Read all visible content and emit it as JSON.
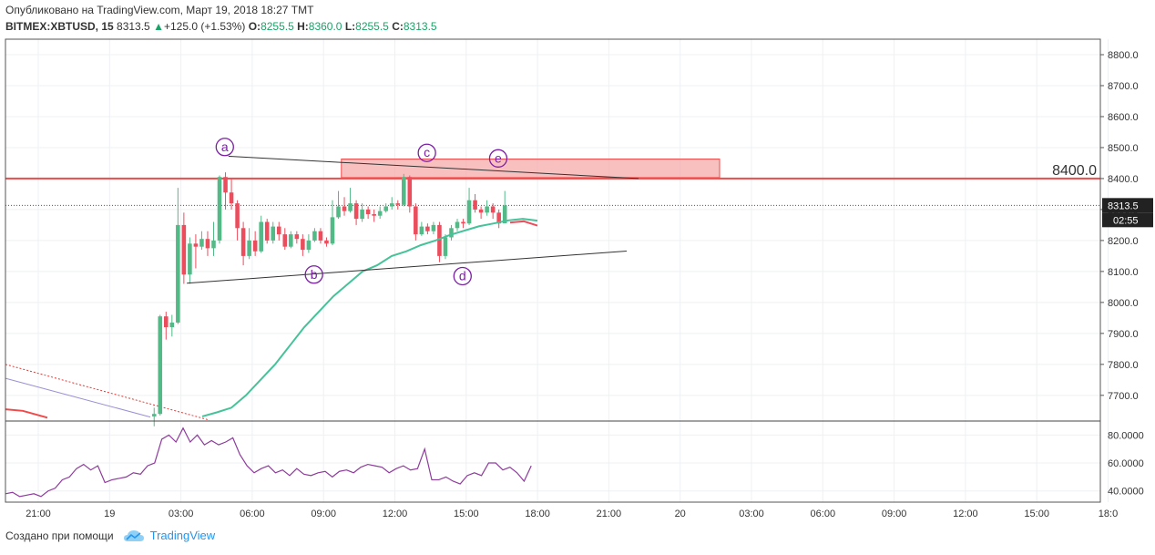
{
  "header": {
    "published": "Опубликовано на TradingView.com, Март 19, 2018 18:27 TMT",
    "symbol": "BITMEX:XBTUSD, 15",
    "last": "8313.5",
    "change_arrow": "▲",
    "change": "+125.0 (+1.53%)",
    "o_label": "O:",
    "o_value": "8255.5",
    "h_label": "H:",
    "h_value": "8360.0",
    "l_label": "L:",
    "l_value": "8255.5",
    "c_label": "C:",
    "c_value": "8313.5"
  },
  "footer": {
    "created_with": "Создано при помощи",
    "brand": "TradingView",
    "logo_icon": "tradingview-cloud-icon"
  },
  "colors": {
    "up": "#53b987",
    "down": "#eb4d5c",
    "ema": "#46c29a",
    "rsi": "#8e3b9c",
    "resistance": "#f04a4a",
    "zone_fill": "#f7a5a5",
    "label": "#7b1fa2"
  },
  "chart_data": {
    "type": "candlestick",
    "price_axis": {
      "ticks": [
        "8800.0",
        "8700.0",
        "8600.0",
        "8500.0",
        "8400.0",
        "8300.0",
        "8200.0",
        "8100.0",
        "8000.0",
        "7900.0",
        "7800.0",
        "7700.0"
      ],
      "range": [
        7620,
        8850
      ]
    },
    "time_axis": {
      "ticks": [
        "21:00",
        "19",
        "03:00",
        "06:00",
        "09:00",
        "12:00",
        "15:00",
        "18:00",
        "21:00",
        "20",
        "03:00",
        "06:00",
        "09:00",
        "12:00",
        "15:00",
        "18:0"
      ]
    },
    "last_price_label": "8313.5",
    "countdown_label": "02:55",
    "resistance": {
      "price": 8400,
      "label": "8400.0"
    },
    "zone": {
      "top": 8463,
      "bottom": 8403,
      "start": "09:45",
      "end": "01:45"
    },
    "wave_labels": [
      {
        "text": "a",
        "time": "05:00",
        "price": 8502
      },
      {
        "text": "b",
        "time": "08:45",
        "price": 8090
      },
      {
        "text": "c",
        "time": "13:30",
        "price": 8483
      },
      {
        "text": "d",
        "time": "15:00",
        "price": 8085
      },
      {
        "text": "e",
        "time": "16:30",
        "price": 8465
      }
    ],
    "trendlines": [
      {
        "from": [
          "05:00",
          8472
        ],
        "to": [
          "22:15",
          8400
        ]
      },
      {
        "from": [
          "03:15",
          8062
        ],
        "to": [
          "21:45",
          8166
        ]
      }
    ],
    "candles": [
      [
        7632,
        7640,
        7600,
        7660
      ],
      [
        7640,
        7955,
        7635,
        7960
      ],
      [
        7955,
        7920,
        7880,
        7970
      ],
      [
        7920,
        7935,
        7890,
        7960
      ],
      [
        7935,
        8250,
        7930,
        8370
      ],
      [
        8250,
        8090,
        8060,
        8290
      ],
      [
        8090,
        8190,
        8060,
        8210
      ],
      [
        8190,
        8180,
        8110,
        8220
      ],
      [
        8180,
        8205,
        8170,
        8230
      ],
      [
        8205,
        8175,
        8150,
        8230
      ],
      [
        8175,
        8200,
        8150,
        8260
      ],
      [
        8200,
        8405,
        8190,
        8410
      ],
      [
        8405,
        8355,
        8300,
        8420
      ],
      [
        8355,
        8320,
        8300,
        8400
      ],
      [
        8320,
        8240,
        8200,
        8330
      ],
      [
        8240,
        8150,
        8120,
        8260
      ],
      [
        8150,
        8200,
        8140,
        8240
      ],
      [
        8200,
        8165,
        8150,
        8230
      ],
      [
        8165,
        8260,
        8160,
        8280
      ],
      [
        8260,
        8200,
        8190,
        8270
      ],
      [
        8200,
        8245,
        8190,
        8260
      ],
      [
        8245,
        8220,
        8200,
        8260
      ],
      [
        8220,
        8180,
        8170,
        8240
      ],
      [
        8180,
        8220,
        8175,
        8230
      ],
      [
        8220,
        8205,
        8190,
        8230
      ],
      [
        8205,
        8170,
        8150,
        8220
      ],
      [
        8170,
        8200,
        8160,
        8220
      ],
      [
        8200,
        8230,
        8195,
        8240
      ],
      [
        8230,
        8200,
        8190,
        8240
      ],
      [
        8200,
        8190,
        8180,
        8210
      ],
      [
        8190,
        8275,
        8185,
        8330
      ],
      [
        8275,
        8310,
        8270,
        8360
      ],
      [
        8310,
        8295,
        8280,
        8340
      ],
      [
        8295,
        8320,
        8290,
        8370
      ],
      [
        8320,
        8270,
        8250,
        8330
      ],
      [
        8270,
        8300,
        8260,
        8320
      ],
      [
        8300,
        8285,
        8270,
        8310
      ],
      [
        8285,
        8280,
        8260,
        8300
      ],
      [
        8280,
        8295,
        8270,
        8310
      ],
      [
        8295,
        8310,
        8290,
        8320
      ],
      [
        8310,
        8320,
        8300,
        8340
      ],
      [
        8320,
        8315,
        8300,
        8330
      ],
      [
        8315,
        8405,
        8310,
        8415
      ],
      [
        8405,
        8310,
        8290,
        8410
      ],
      [
        8310,
        8220,
        8200,
        8320
      ],
      [
        8220,
        8245,
        8215,
        8260
      ],
      [
        8245,
        8230,
        8220,
        8255
      ],
      [
        8230,
        8250,
        8220,
        8260
      ],
      [
        8250,
        8150,
        8130,
        8260
      ],
      [
        8150,
        8210,
        8140,
        8220
      ],
      [
        8210,
        8240,
        8200,
        8250
      ],
      [
        8240,
        8260,
        8230,
        8270
      ],
      [
        8260,
        8255,
        8240,
        8270
      ],
      [
        8255,
        8330,
        8250,
        8370
      ],
      [
        8330,
        8300,
        8290,
        8350
      ],
      [
        8300,
        8290,
        8270,
        8310
      ],
      [
        8290,
        8310,
        8280,
        8330
      ],
      [
        8310,
        8290,
        8270,
        8320
      ],
      [
        8290,
        8255,
        8240,
        8300
      ],
      [
        8255.5,
        8313.5,
        8255.5,
        8360
      ]
    ],
    "ema": [
      [
        7632,
        7660
      ],
      [
        7645,
        7680
      ],
      [
        7660,
        7700
      ],
      [
        7700,
        7730
      ],
      [
        7750,
        7780
      ],
      [
        7800,
        7830
      ],
      [
        7860,
        7890
      ],
      [
        7920,
        7950
      ],
      [
        7970,
        8000
      ],
      [
        8020,
        8040
      ],
      [
        8060,
        8080
      ],
      [
        8100,
        8110
      ],
      [
        8120,
        8140
      ],
      [
        8150,
        8160
      ],
      [
        8165,
        8180
      ],
      [
        8185,
        8200
      ],
      [
        8200,
        8215
      ],
      [
        8218,
        8228
      ],
      [
        8232,
        8240
      ],
      [
        8246,
        8250
      ],
      [
        8255,
        8262
      ],
      [
        8265,
        8275
      ],
      [
        8270,
        8275
      ],
      [
        8264,
        8260
      ]
    ],
    "rsi": {
      "ticks": [
        "80.0000",
        "60.0000",
        "40.0000"
      ],
      "range": [
        32,
        90
      ],
      "values": [
        38,
        39,
        36,
        37,
        38,
        36,
        40,
        42,
        48,
        50,
        56,
        59,
        55,
        58,
        46,
        48,
        49,
        50,
        53,
        52,
        58,
        60,
        77,
        80,
        75,
        85,
        75,
        80,
        73,
        76,
        73,
        75,
        78,
        66,
        58,
        53,
        56,
        58,
        53,
        55,
        51,
        56,
        52,
        51,
        53,
        54,
        50,
        54,
        55,
        53,
        57,
        59,
        58,
        57,
        53,
        56,
        58,
        55,
        56,
        70,
        48,
        48,
        50,
        47,
        45,
        51,
        53,
        51,
        60,
        60,
        55,
        57,
        53,
        47,
        58
      ]
    }
  }
}
